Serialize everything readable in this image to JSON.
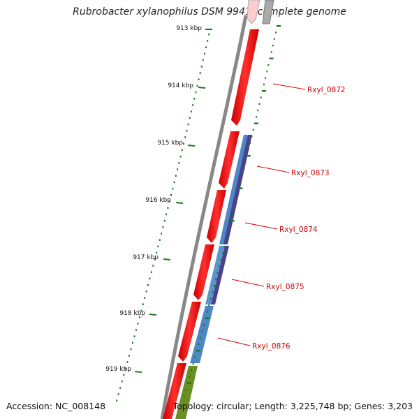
{
  "title": "Rubrobacter xylanophilus DSM 9941, complete genome",
  "footer": {
    "accession": "Accession: NC_008148",
    "summary": "Topology: circular; Length: 3,225,748 bp; Genes: 3,203"
  },
  "scale_ticks": [
    "913 kbp",
    "914 kbp",
    "915 kbp",
    "916 kbp",
    "917 kbp",
    "918 kbp",
    "919 kbp"
  ],
  "gene_labels": [
    "Rxyl_0872",
    "Rxyl_0873",
    "Rxyl_0874",
    "Rxyl_0875",
    "Rxyl_0876"
  ],
  "colors": {
    "backbone": "#888888",
    "cds": "#ff0000",
    "label_text": "#cc0000",
    "ticks": "#1a7a1a",
    "track_blue": "#4f86c6",
    "track_purple": "#4b3f8f",
    "track_olive": "#6b8e23"
  }
}
